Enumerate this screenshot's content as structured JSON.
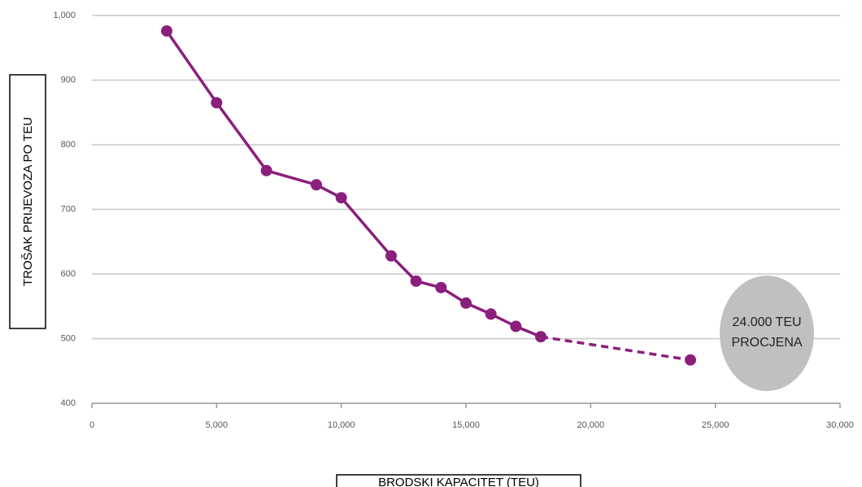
{
  "chart_data": {
    "type": "line",
    "x_label": "BRODSKI KAPACITET (TEU)",
    "y_label": "TROŠAK PRIJEVOZA PO TEU",
    "x": [
      3000,
      5000,
      7000,
      9000,
      10000,
      12000,
      13000,
      14000,
      15000,
      16000,
      17000,
      18000,
      24000
    ],
    "values": [
      976,
      865,
      760,
      738,
      718,
      628,
      589,
      579,
      555,
      538,
      519,
      503,
      467
    ],
    "color": "#8a1f7c",
    "dashed_last_segment": true,
    "xlim": [
      0,
      30000
    ],
    "xticks": [
      0,
      {
        "value": 5000,
        "label": "5,000"
      },
      {
        "value": 10000,
        "label": "10,000"
      },
      {
        "value": 15000,
        "label": "15,000"
      },
      {
        "value": 20000,
        "label": "20,000"
      },
      {
        "value": 25000,
        "label": "25,000"
      },
      {
        "value": 30000,
        "label": "30,000"
      }
    ],
    "ylim": [
      400,
      1000
    ],
    "yticks": [
      400,
      500,
      600,
      700,
      800,
      900,
      {
        "value": 1000,
        "label": "1,000"
      }
    ],
    "grid": true,
    "annotation": {
      "lines": [
        "24.000 TEU",
        "PROCJENA"
      ],
      "color": "#c0c0c0"
    }
  }
}
